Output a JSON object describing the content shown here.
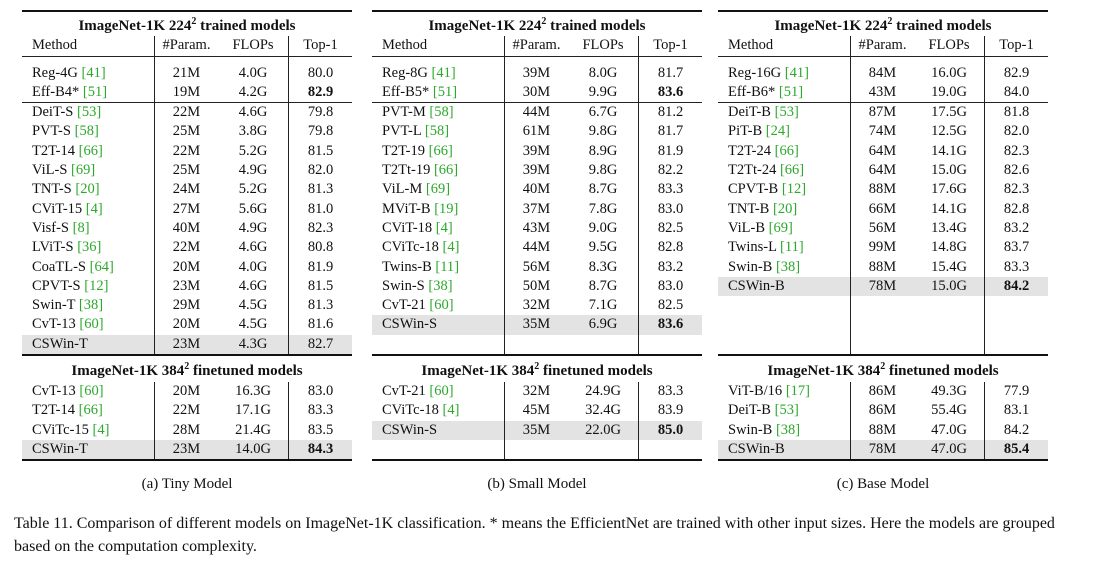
{
  "headers": {
    "method": "Method",
    "param": "#Param.",
    "flops": "FLOPs",
    "top1": "Top-1"
  },
  "panels": [
    {
      "id": "tiny",
      "title_224": "ImageNet-1K 224",
      "title_384": "ImageNet-1K 384",
      "title_suffix": " trained models",
      "title_suffix_384": " finetuned models",
      "sup": "2",
      "label": "(a) Tiny Model",
      "groups_224": [
        [
          {
            "m": "Reg-4G",
            "ref": "41",
            "p": "21M",
            "f": "4.0G",
            "t": "80.0"
          },
          {
            "m": "Eff-B4*",
            "ref": "51",
            "p": "19M",
            "f": "4.2G",
            "t": "82.9",
            "bold": true
          }
        ],
        [
          {
            "m": "DeiT-S",
            "ref": "53",
            "p": "22M",
            "f": "4.6G",
            "t": "79.8"
          },
          {
            "m": "PVT-S",
            "ref": "58",
            "p": "25M",
            "f": "3.8G",
            "t": "79.8"
          },
          {
            "m": "T2T-14",
            "ref": "66",
            "p": "22M",
            "f": "5.2G",
            "t": "81.5"
          },
          {
            "m": "ViL-S",
            "ref": "69",
            "p": "25M",
            "f": "4.9G",
            "t": "82.0"
          },
          {
            "m": "TNT-S",
            "ref": "20",
            "p": "24M",
            "f": "5.2G",
            "t": "81.3"
          },
          {
            "m": "CViT-15",
            "ref": "4",
            "p": "27M",
            "f": "5.6G",
            "t": "81.0"
          },
          {
            "m": "Visf-S",
            "ref": "8",
            "p": "40M",
            "f": "4.9G",
            "t": "82.3"
          },
          {
            "m": "LViT-S",
            "ref": "36",
            "p": "22M",
            "f": "4.6G",
            "t": "80.8"
          },
          {
            "m": "CoaTL-S",
            "ref": "64",
            "p": "20M",
            "f": "4.0G",
            "t": "81.9"
          },
          {
            "m": "CPVT-S",
            "ref": "12",
            "p": "23M",
            "f": "4.6G",
            "t": "81.5"
          },
          {
            "m": "Swin-T",
            "ref": "38",
            "p": "29M",
            "f": "4.5G",
            "t": "81.3"
          },
          {
            "m": "CvT-13",
            "ref": "60",
            "p": "20M",
            "f": "4.5G",
            "t": "81.6"
          }
        ]
      ],
      "ours_224": {
        "m": "CSWin-T",
        "p": "23M",
        "f": "4.3G",
        "t": "82.7"
      },
      "rows_384": [
        {
          "m": "CvT-13",
          "ref": "60",
          "p": "20M",
          "f": "16.3G",
          "t": "83.0"
        },
        {
          "m": "T2T-14",
          "ref": "66",
          "p": "22M",
          "f": "17.1G",
          "t": "83.3"
        },
        {
          "m": "CViTc-15",
          "ref": "4",
          "p": "28M",
          "f": "21.4G",
          "t": "83.5"
        }
      ],
      "ours_384": {
        "m": "CSWin-T",
        "p": "23M",
        "f": "14.0G",
        "t": "84.3",
        "bold": true
      }
    },
    {
      "id": "small",
      "title_224": "ImageNet-1K 224",
      "title_384": "ImageNet-1K 384",
      "title_suffix": " trained models",
      "title_suffix_384": " finetuned models",
      "sup": "2",
      "label": "(b) Small Model",
      "groups_224": [
        [
          {
            "m": "Reg-8G",
            "ref": "41",
            "p": "39M",
            "f": "8.0G",
            "t": "81.7"
          },
          {
            "m": "Eff-B5*",
            "ref": "51",
            "p": "30M",
            "f": "9.9G",
            "t": "83.6",
            "bold": true
          }
        ],
        [
          {
            "m": "PVT-M",
            "ref": "58",
            "p": "44M",
            "f": "6.7G",
            "t": "81.2"
          },
          {
            "m": "PVT-L",
            "ref": "58",
            "p": "61M",
            "f": "9.8G",
            "t": "81.7"
          },
          {
            "m": "T2T-19",
            "ref": "66",
            "p": "39M",
            "f": "8.9G",
            "t": "81.9"
          },
          {
            "m": "T2Tt-19",
            "ref": "66",
            "p": "39M",
            "f": "9.8G",
            "t": "82.2"
          },
          {
            "m": "ViL-M",
            "ref": "69",
            "p": "40M",
            "f": "8.7G",
            "t": "83.3"
          },
          {
            "m": "MViT-B",
            "ref": "19",
            "p": "37M",
            "f": "7.8G",
            "t": "83.0"
          },
          {
            "m": "CViT-18",
            "ref": "4",
            "p": "43M",
            "f": "9.0G",
            "t": "82.5"
          },
          {
            "m": "CViTc-18",
            "ref": "4",
            "p": "44M",
            "f": "9.5G",
            "t": "82.8"
          },
          {
            "m": "Twins-B",
            "ref": "11",
            "p": "56M",
            "f": "8.3G",
            "t": "83.2"
          },
          {
            "m": "Swin-S",
            "ref": "38",
            "p": "50M",
            "f": "8.7G",
            "t": "83.0"
          },
          {
            "m": "CvT-21",
            "ref": "60",
            "p": "32M",
            "f": "7.1G",
            "t": "82.5"
          }
        ]
      ],
      "ours_224": {
        "m": "CSWin-S",
        "p": "35M",
        "f": "6.9G",
        "t": "83.6",
        "bold": true
      },
      "rows_384": [
        {
          "m": "CvT-21",
          "ref": "60",
          "p": "32M",
          "f": "24.9G",
          "t": "83.3"
        },
        {
          "m": "CViTc-18",
          "ref": "4",
          "p": "45M",
          "f": "32.4G",
          "t": "83.9"
        }
      ],
      "ours_384": {
        "m": "CSWin-S",
        "p": "35M",
        "f": "22.0G",
        "t": "85.0",
        "bold": true
      }
    },
    {
      "id": "base",
      "title_224": "ImageNet-1K 224",
      "title_384": "ImageNet-1K 384",
      "title_suffix": " trained models",
      "title_suffix_384": " finetuned models",
      "sup": "2",
      "label": "(c) Base Model",
      "groups_224": [
        [
          {
            "m": "Reg-16G",
            "ref": "41",
            "p": "84M",
            "f": "16.0G",
            "t": "82.9"
          },
          {
            "m": "Eff-B6*",
            "ref": "51",
            "p": "43M",
            "f": "19.0G",
            "t": "84.0"
          }
        ],
        [
          {
            "m": "DeiT-B",
            "ref": "53",
            "p": "87M",
            "f": "17.5G",
            "t": "81.8"
          },
          {
            "m": "PiT-B",
            "ref": "24",
            "p": "74M",
            "f": "12.5G",
            "t": "82.0"
          },
          {
            "m": "T2T-24",
            "ref": "66",
            "p": "64M",
            "f": "14.1G",
            "t": "82.3"
          },
          {
            "m": "T2Tt-24",
            "ref": "66",
            "p": "64M",
            "f": "15.0G",
            "t": "82.6"
          },
          {
            "m": "CPVT-B",
            "ref": "12",
            "p": "88M",
            "f": "17.6G",
            "t": "82.3"
          },
          {
            "m": "TNT-B",
            "ref": "20",
            "p": "66M",
            "f": "14.1G",
            "t": "82.8"
          },
          {
            "m": "ViL-B",
            "ref": "69",
            "p": "56M",
            "f": "13.4G",
            "t": "83.2"
          },
          {
            "m": "Twins-L",
            "ref": "11",
            "p": "99M",
            "f": "14.8G",
            "t": "83.7"
          },
          {
            "m": "Swin-B",
            "ref": "38",
            "p": "88M",
            "f": "15.4G",
            "t": "83.3"
          }
        ]
      ],
      "ours_224": {
        "m": "CSWin-B",
        "p": "78M",
        "f": "15.0G",
        "t": "84.2",
        "bold": true
      },
      "rows_384": [
        {
          "m": "ViT-B/16",
          "ref": "17",
          "p": "86M",
          "f": "49.3G",
          "t": "77.9"
        },
        {
          "m": "DeiT-B",
          "ref": "53",
          "p": "86M",
          "f": "55.4G",
          "t": "83.1"
        },
        {
          "m": "Swin-B",
          "ref": "38",
          "p": "88M",
          "f": "47.0G",
          "t": "84.2"
        }
      ],
      "ours_384": {
        "m": "CSWin-B",
        "p": "78M",
        "f": "47.0G",
        "t": "85.4",
        "bold": true
      }
    }
  ],
  "caption": "Table 11. Comparison of different models on ImageNet-1K classification. * means the EfficientNet are trained with other input sizes. Here the models are grouped based on the computation complexity."
}
